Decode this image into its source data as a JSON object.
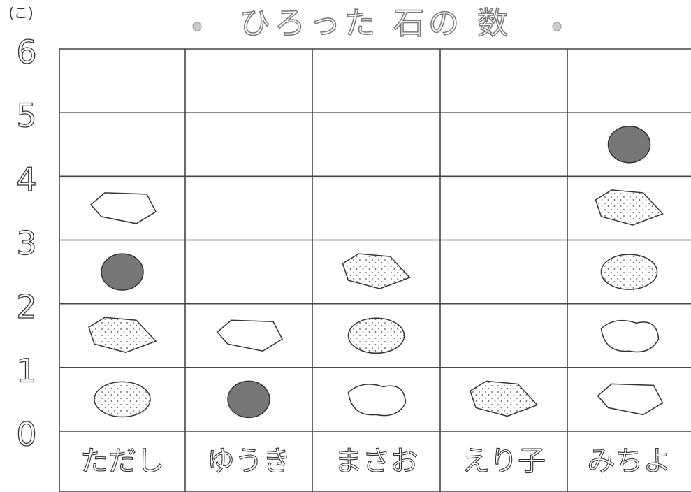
{
  "chart_data": {
    "type": "pictograph",
    "title": "ひろった 石の 数",
    "y_unit": "(こ)",
    "categories": [
      "ただし",
      "ゆうき",
      "まさお",
      "えり子",
      "みちよ"
    ],
    "values": [
      4,
      2,
      3,
      1,
      5
    ],
    "ylim": [
      0,
      6
    ],
    "yticks": [
      0,
      1,
      2,
      3,
      4,
      5,
      6
    ],
    "grid": true
  }
}
